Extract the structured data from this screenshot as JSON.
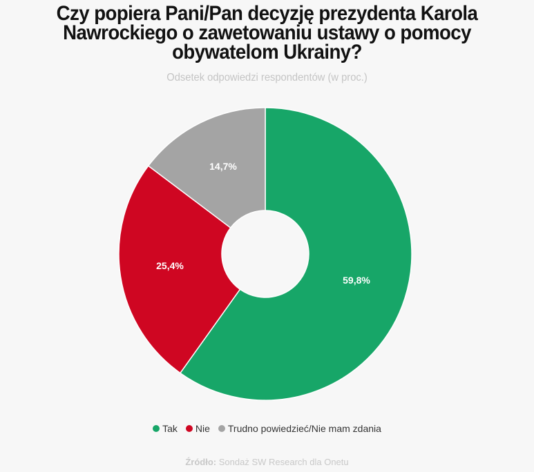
{
  "header": {
    "title_lines": [
      "Czy popiera Pani/Pan decyzję prezydenta Karola",
      "Nawrockiego o zawetowaniu ustawy o pomocy",
      "obywatelom Ukrainy?"
    ],
    "subtitle": "Odsetek odpowiedzi respondentów (w proc.)"
  },
  "legend": [
    {
      "label": "Tak",
      "color": "#17a668"
    },
    {
      "label": "Nie",
      "color": "#cf0622"
    },
    {
      "label": "Trudno powiedzieć/Nie mam zdania",
      "color": "#a4a4a4"
    }
  ],
  "labels": {
    "tak": "59,8%",
    "nie": "25,4%",
    "trudno": "14,7%"
  },
  "source": {
    "prefix": "Źródło:",
    "text": " Sondaż SW Research dla Onetu"
  },
  "chart_data": {
    "type": "pie",
    "donut": true,
    "title": "Czy popiera Pani/Pan decyzję prezydenta Karola Nawrockiego o zawetowaniu ustawy o pomocy obywatelom Ukrainy?",
    "subtitle": "Odsetek odpowiedzi respondentów (w proc.)",
    "categories": [
      "Tak",
      "Nie",
      "Trudno powiedzieć/Nie mam zdania"
    ],
    "values": [
      59.8,
      25.4,
      14.7
    ],
    "value_labels": [
      "59,8%",
      "25,4%",
      "14,7%"
    ],
    "colors": [
      "#17a668",
      "#cf0622",
      "#a4a4a4"
    ],
    "legend_position": "bottom",
    "source": "Źródło: Sondaż SW Research dla Onetu"
  }
}
